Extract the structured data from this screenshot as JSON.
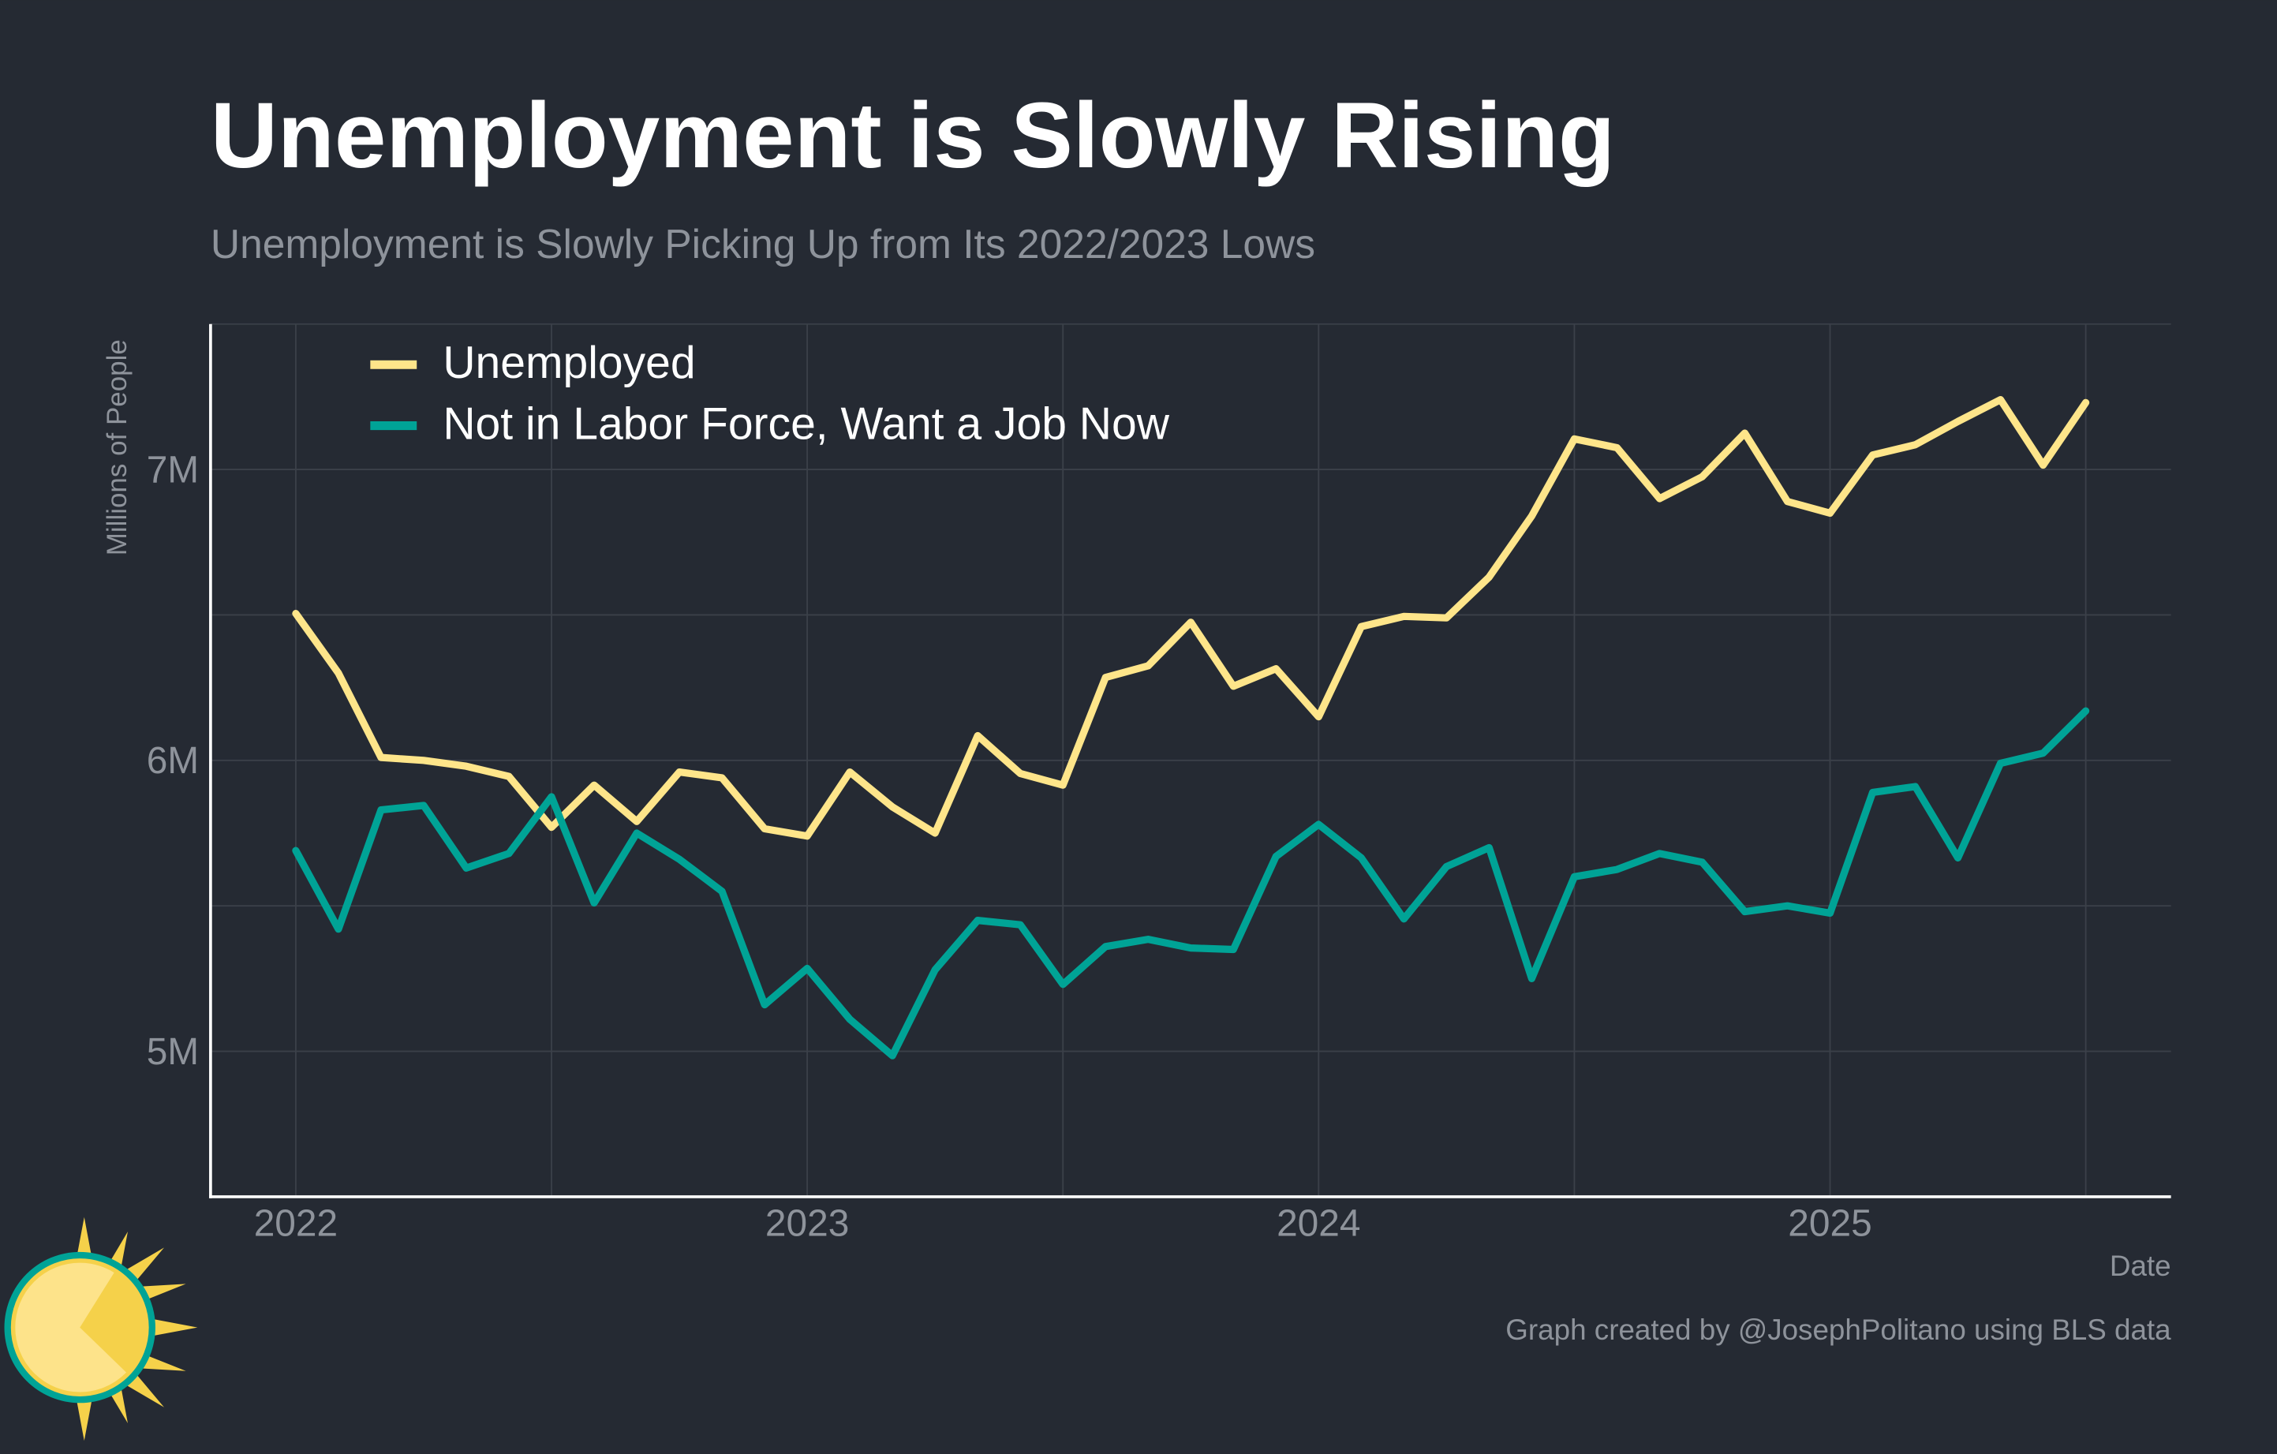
{
  "chart_data": {
    "type": "line",
    "title": "Unemployment is Slowly Rising",
    "subtitle": "Unemployment is Slowly Picking Up from Its 2022/2023 Lows",
    "y_label": "Millions of People",
    "x_label": "Date",
    "credit": "Graph created by @JosephPolitano using BLS data",
    "x": [
      "2022-01",
      "2022-02",
      "2022-03",
      "2022-04",
      "2022-05",
      "2022-06",
      "2022-07",
      "2022-08",
      "2022-09",
      "2022-10",
      "2022-11",
      "2022-12",
      "2023-01",
      "2023-02",
      "2023-03",
      "2023-04",
      "2023-05",
      "2023-06",
      "2023-07",
      "2023-08",
      "2023-09",
      "2023-10",
      "2023-11",
      "2023-12",
      "2024-01",
      "2024-02",
      "2024-03",
      "2024-04",
      "2024-05",
      "2024-06",
      "2024-07",
      "2024-08",
      "2024-09",
      "2024-10",
      "2024-11",
      "2024-12",
      "2025-01",
      "2025-02",
      "2025-03",
      "2025-04",
      "2025-05",
      "2025-06",
      "2025-07"
    ],
    "series": [
      {
        "name": "Unemployed",
        "color": "#fee58a",
        "values": [
          6.505,
          6.3,
          6.01,
          6.0,
          5.98,
          5.945,
          5.77,
          5.915,
          5.79,
          5.96,
          5.94,
          5.765,
          5.74,
          5.96,
          5.84,
          5.75,
          6.085,
          5.955,
          5.915,
          6.285,
          6.325,
          6.475,
          6.255,
          6.315,
          6.15,
          6.46,
          6.495,
          6.49,
          6.63,
          6.84,
          7.105,
          7.075,
          6.9,
          6.975,
          7.125,
          6.89,
          6.85,
          7.05,
          7.085,
          7.165,
          7.24,
          7.015,
          7.23
        ]
      },
      {
        "name": "Not in Labor Force, Want a Job Now",
        "color": "#00a396",
        "values": [
          5.69,
          5.42,
          5.83,
          5.845,
          5.63,
          5.68,
          5.875,
          5.51,
          5.75,
          5.66,
          5.55,
          5.16,
          5.285,
          5.11,
          4.985,
          5.28,
          5.45,
          5.435,
          5.23,
          5.36,
          5.385,
          5.355,
          5.35,
          5.67,
          5.78,
          5.665,
          5.455,
          5.635,
          5.7,
          5.25,
          5.6,
          5.625,
          5.68,
          5.65,
          5.48,
          5.5,
          5.475,
          5.89,
          5.91,
          5.665,
          5.99,
          6.025,
          6.17
        ]
      }
    ],
    "xlim": [
      "2021-11",
      "2025-09"
    ],
    "xticks": [
      {
        "value": "2022-01",
        "label": "2022"
      },
      {
        "value": "2023-01",
        "label": "2023"
      },
      {
        "value": "2024-01",
        "label": "2024"
      },
      {
        "value": "2025-01",
        "label": "2025"
      }
    ],
    "x_minor_ticks": [
      "2022-07",
      "2023-07",
      "2024-07",
      "2025-07"
    ],
    "ylim": [
      4.5,
      7.5
    ],
    "yticks": [
      {
        "value": 5,
        "label": "5M"
      },
      {
        "value": 6,
        "label": "6M"
      },
      {
        "value": 7,
        "label": "7M"
      }
    ],
    "y_minor_ticks": [
      5.5,
      6.5,
      7.5
    ],
    "grid": true,
    "legend": "top-left"
  }
}
